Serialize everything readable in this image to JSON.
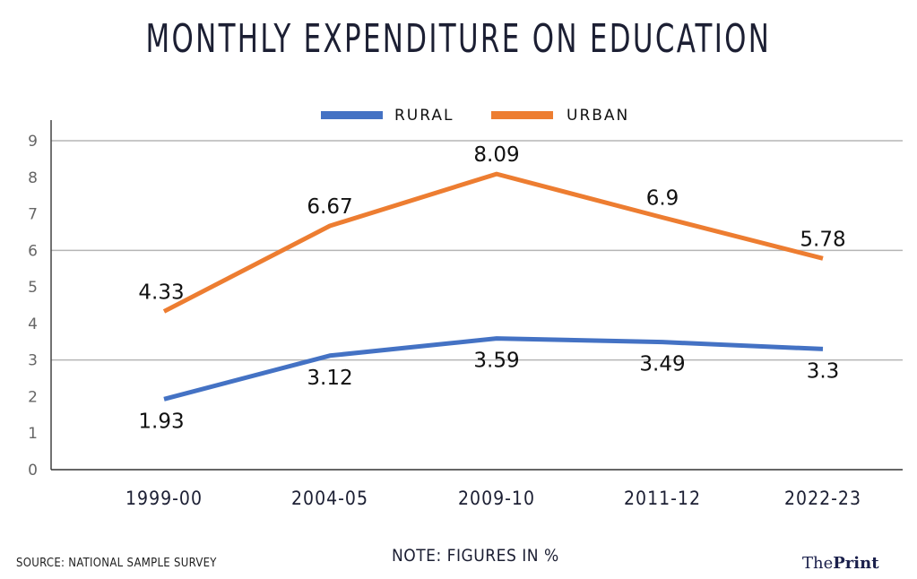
{
  "chart_data": {
    "type": "line",
    "title": "MONTHLY EXPENDITURE ON EDUCATION",
    "xlabel": "",
    "ylabel": "",
    "categories": [
      "1999-00",
      "2004-05",
      "2009-10",
      "2011-12",
      "2022-23"
    ],
    "yticks": [
      "0",
      "1",
      "2",
      "3",
      "4",
      "5",
      "6",
      "7",
      "8",
      "9"
    ],
    "ylim": [
      0,
      9
    ],
    "gridlines_at": [
      3,
      6,
      9
    ],
    "legend_position": "top-center",
    "series": [
      {
        "name": "RURAL",
        "color": "#4472c4",
        "values": [
          1.93,
          3.12,
          3.59,
          3.49,
          3.3
        ],
        "labels": [
          "1.93",
          "3.12",
          "3.59",
          "3.49",
          "3.3"
        ]
      },
      {
        "name": "URBAN",
        "color": "#ed7d31",
        "values": [
          4.33,
          6.67,
          8.09,
          6.9,
          5.78
        ],
        "labels": [
          "4.33",
          "6.67",
          "8.09",
          "6.9",
          "5.78"
        ]
      }
    ]
  },
  "footer": {
    "source": "SOURCE: NATIONAL SAMPLE SURVEY",
    "note": "NOTE: FIGURES IN %",
    "logo_light": "The",
    "logo_bold": "Print"
  }
}
